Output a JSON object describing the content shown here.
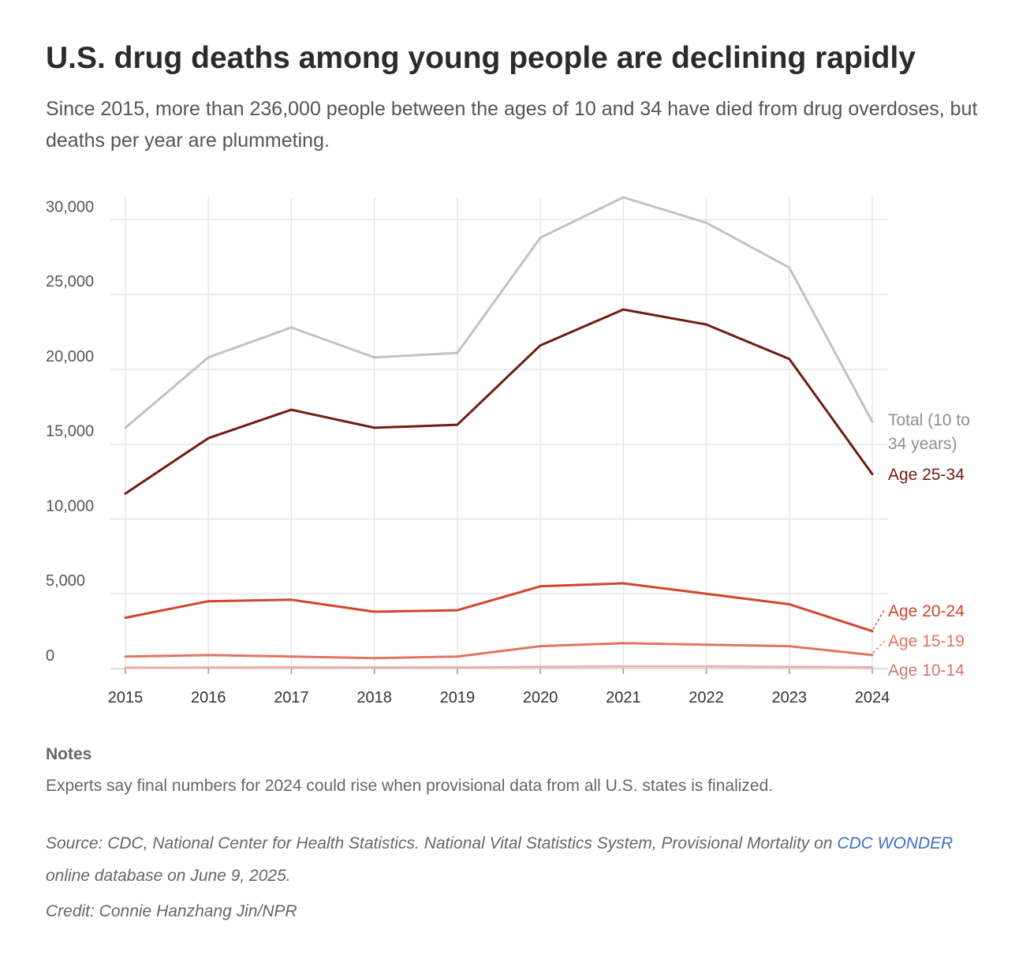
{
  "header": {
    "title": "U.S. drug deaths among young people are declining rapidly",
    "subtitle": "Since 2015, more than 236,000 people between the ages of 10 and 34 have died from drug overdoses, but deaths per year are plummeting."
  },
  "chart_data": {
    "type": "line",
    "title": "U.S. drug deaths among young people are declining rapidly",
    "xlabel": "",
    "ylabel": "",
    "ylim": [
      0,
      31500
    ],
    "grid": true,
    "x": [
      2015,
      2016,
      2017,
      2018,
      2019,
      2020,
      2021,
      2022,
      2023,
      2024
    ],
    "y_ticks": [
      "0",
      "5,000",
      "10,000",
      "15,000",
      "20,000",
      "25,000",
      "30,000"
    ],
    "y_tick_values": [
      0,
      5000,
      10000,
      15000,
      20000,
      25000,
      30000
    ],
    "series": [
      {
        "name": "Total (10 to 34 years)",
        "color": "#c2c2c2",
        "values": [
          16100,
          20800,
          22800,
          20800,
          21100,
          28800,
          31500,
          29800,
          26800,
          16500
        ]
      },
      {
        "name": "Age 25-34",
        "color": "#6f1d12",
        "values": [
          11700,
          15400,
          17300,
          16100,
          16300,
          21600,
          24000,
          23000,
          20700,
          13000
        ]
      },
      {
        "name": "Age 20-24",
        "color": "#d1452c",
        "values": [
          3400,
          4500,
          4600,
          3800,
          3900,
          5500,
          5700,
          5000,
          4300,
          2500
        ]
      },
      {
        "name": "Age 15-19",
        "color": "#e07563",
        "values": [
          800,
          900,
          800,
          700,
          800,
          1500,
          1700,
          1600,
          1500,
          900
        ]
      },
      {
        "name": "Age 10-14",
        "color": "#efaaa0",
        "values": [
          70,
          80,
          90,
          80,
          80,
          120,
          140,
          140,
          120,
          90
        ]
      }
    ],
    "labels": {
      "total_line1": "Total (10 to",
      "total_line2": "34 years)",
      "age_25_34": "Age 25-34",
      "age_20_24": "Age 20-24",
      "age_15_19": "Age 15-19",
      "age_10_14": "Age 10-14"
    }
  },
  "notes": {
    "heading": "Notes",
    "text": "Experts say final numbers for 2024 could rise when provisional data from all U.S. states is finalized."
  },
  "source": {
    "prefix": "Source: CDC, National Center for Health Statistics. National Vital Statistics System, Provisional Mortality on",
    "link_text": "CDC WONDER",
    "suffix": "online database on June 9, 2025."
  },
  "credit": "Credit: Connie Hanzhang Jin/NPR"
}
